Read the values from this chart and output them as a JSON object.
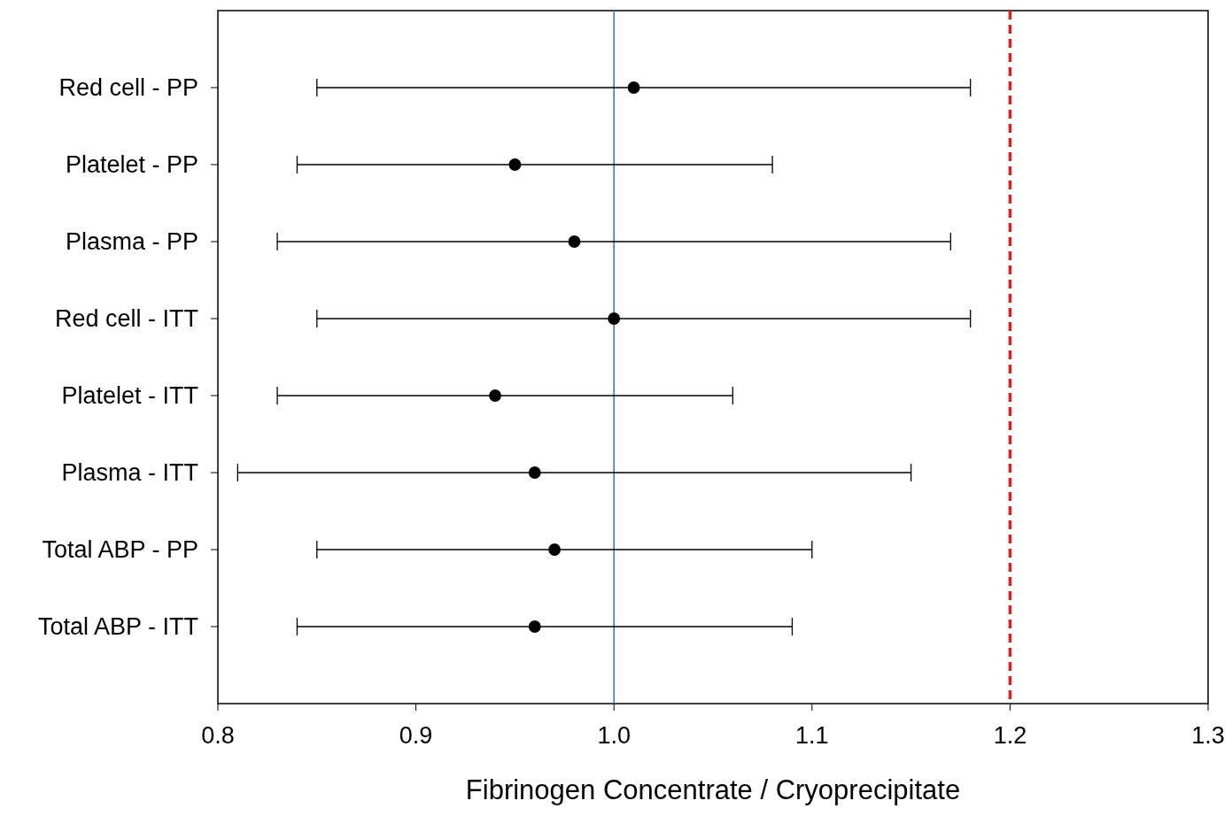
{
  "chart_data": {
    "type": "scatter",
    "orientation": "horizontal",
    "xlabel": "Fibrinogen Concentrate / Cryoprecipitate",
    "categories": [
      "Red cell - PP",
      "Platelet - PP",
      "Plasma - PP",
      "Red cell - ITT",
      "Platelet - ITT",
      "Plasma - ITT",
      "Total ABP - PP",
      "Total ABP - ITT"
    ],
    "series": [
      {
        "color": "#000000",
        "values": [
          1.01,
          0.95,
          0.98,
          1.0,
          0.94,
          0.96,
          0.97,
          0.96
        ],
        "errors": [
          [
            0.85,
            1.18
          ],
          [
            0.84,
            1.08
          ],
          [
            0.83,
            1.17
          ],
          [
            0.85,
            1.18
          ],
          [
            0.83,
            1.06
          ],
          [
            0.81,
            1.15
          ],
          [
            0.85,
            1.1
          ],
          [
            0.84,
            1.09
          ]
        ]
      }
    ],
    "marker": "circle",
    "xlim": [
      0.8,
      1.3
    ],
    "xticks": [
      {
        "value": 0.8,
        "label": "0.8"
      },
      {
        "value": 0.9,
        "label": "0.9"
      },
      {
        "value": 1.0,
        "label": "1.0"
      },
      {
        "value": 1.1,
        "label": "1.1"
      },
      {
        "value": 1.2,
        "label": "1.2"
      },
      {
        "value": 1.3,
        "label": "1.3"
      }
    ],
    "ref_lines": [
      {
        "axis": "x",
        "value": 1.0,
        "color": "#2e75b6",
        "line_style": "solid"
      },
      {
        "axis": "x",
        "value": 1.2,
        "color": "#e02020",
        "line_style": "dashed"
      }
    ]
  }
}
